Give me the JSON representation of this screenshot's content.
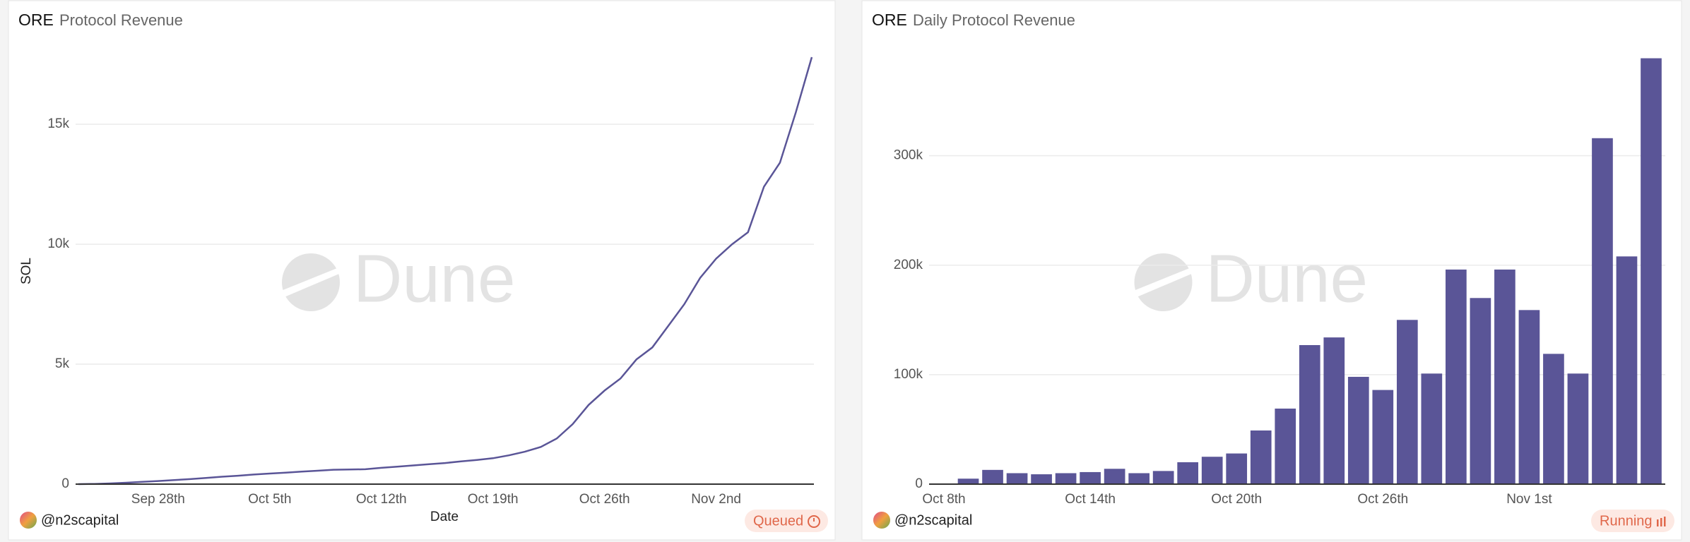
{
  "chart_data": [
    {
      "type": "line",
      "brand": "ORE",
      "title": "Protocol Revenue",
      "y_label": "SOL",
      "x_label": "Date",
      "author": "@n2scapital",
      "status": "Queued",
      "watermark": "Dune",
      "color": "#5a5597",
      "categories": [
        "Sep 23rd",
        "Sep 24th",
        "Sep 25th",
        "Sep 26th",
        "Sep 27th",
        "Sep 28th",
        "Sep 29th",
        "Sep 30th",
        "Oct 1st",
        "Oct 2nd",
        "Oct 3rd",
        "Oct 4th",
        "Oct 5th",
        "Oct 6th",
        "Oct 7th",
        "Oct 8th",
        "Oct 9th",
        "Oct 10th",
        "Oct 11th",
        "Oct 12th",
        "Oct 13th",
        "Oct 14th",
        "Oct 15th",
        "Oct 16th",
        "Oct 17th",
        "Oct 18th",
        "Oct 19th",
        "Oct 20th",
        "Oct 21st",
        "Oct 22nd",
        "Oct 23rd",
        "Oct 24th",
        "Oct 25th",
        "Oct 26th",
        "Oct 27th",
        "Oct 28th",
        "Oct 29th",
        "Oct 30th",
        "Oct 31st",
        "Nov 1st",
        "Nov 2nd",
        "Nov 3rd",
        "Nov 4th",
        "Nov 5th",
        "Nov 6th",
        "Nov 7th",
        "Nov 8th"
      ],
      "values": [
        0,
        10,
        30,
        60,
        95,
        130,
        170,
        210,
        260,
        310,
        350,
        400,
        440,
        480,
        520,
        560,
        600,
        610,
        620,
        680,
        730,
        780,
        830,
        880,
        950,
        1010,
        1080,
        1200,
        1350,
        1550,
        1900,
        2500,
        3300,
        3900,
        4400,
        5200,
        5700,
        6600,
        7500,
        8600,
        9400,
        10000,
        10500,
        12400,
        13400,
        15500,
        17800
      ],
      "xticks": [
        "Sep 28th",
        "Oct 5th",
        "Oct 12th",
        "Oct 19th",
        "Oct 26th",
        "Nov 2nd"
      ],
      "ylim": [
        0,
        17800
      ],
      "yticks": [
        0,
        {
          "value": 5000,
          "label": "5k"
        },
        {
          "value": 10000,
          "label": "10k"
        },
        {
          "value": 15000,
          "label": "15k"
        }
      ],
      "grid": true
    },
    {
      "type": "bar",
      "brand": "ORE",
      "title": "Daily Protocol Revenue",
      "author": "@n2scapital",
      "status": "Running",
      "watermark": "Dune",
      "color": "#5a5597",
      "categories": [
        "Oct 8th",
        "Oct 9th",
        "Oct 10th",
        "Oct 11th",
        "Oct 12th",
        "Oct 13th",
        "Oct 14th",
        "Oct 15th",
        "Oct 16th",
        "Oct 17th",
        "Oct 18th",
        "Oct 19th",
        "Oct 20th",
        "Oct 21st",
        "Oct 22nd",
        "Oct 23rd",
        "Oct 24th",
        "Oct 25th",
        "Oct 26th",
        "Oct 27th",
        "Oct 28th",
        "Oct 29th",
        "Oct 30th",
        "Oct 31st",
        "Nov 1st",
        "Nov 2nd",
        "Nov 3rd",
        "Nov 4th",
        "Nov 5th",
        "Nov 6th"
      ],
      "values": [
        0,
        5000,
        13000,
        10000,
        9000,
        10000,
        11000,
        14000,
        10000,
        12000,
        20000,
        25000,
        28000,
        49000,
        69000,
        127000,
        134000,
        98000,
        86000,
        150000,
        101000,
        196000,
        170000,
        196000,
        159000,
        119000,
        101000,
        316000,
        208000,
        389000
      ],
      "xticks": [
        "Oct 8th",
        "Oct 14th",
        "Oct 20th",
        "Oct 26th",
        "Nov 1st"
      ],
      "ylim": [
        0,
        390000
      ],
      "yticks": [
        0,
        {
          "value": 100000,
          "label": "100k"
        },
        {
          "value": 200000,
          "label": "200k"
        },
        {
          "value": 300000,
          "label": "300k"
        }
      ],
      "grid": true
    }
  ]
}
